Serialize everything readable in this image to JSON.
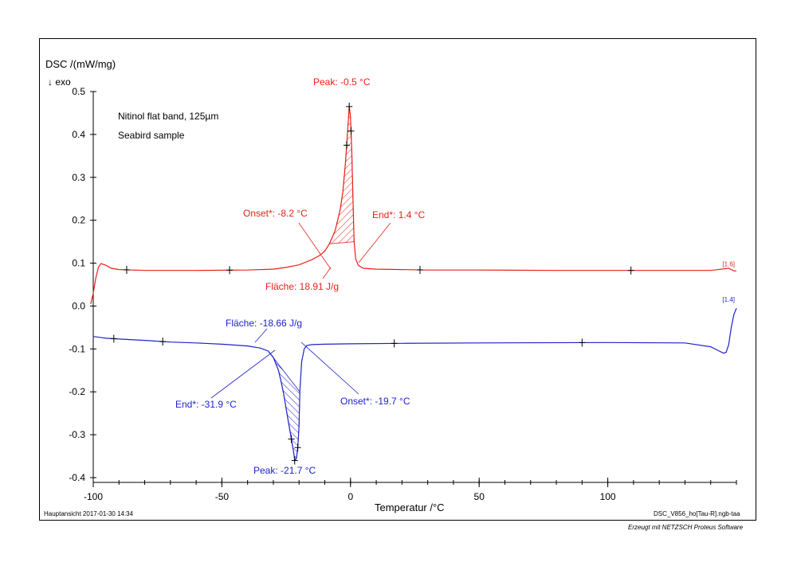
{
  "header": {
    "ylabel": "DSC /(mW/mg)",
    "exo": "↓ exo"
  },
  "footer": {
    "left": "Hauptansicht  2017-01-30 14:34",
    "right": "DSC_V856_ho[Tau-R].ngb-taa",
    "credit": "Erzeugt mit NETZSCH Proteus Software"
  },
  "chart_data": {
    "type": "line",
    "xlabel": "Temperatur /°C",
    "ylabel": "DSC /(mW/mg)",
    "xlim": [
      -100,
      150
    ],
    "ylim": [
      -0.4,
      0.5
    ],
    "x_ticks": [
      -100,
      -50,
      0,
      50,
      100
    ],
    "y_ticks": [
      -0.4,
      -0.3,
      -0.2,
      -0.1,
      0.0,
      0.1,
      0.2,
      0.3,
      0.4,
      0.5
    ],
    "x_tick_labels": [
      "-100",
      "-50",
      "0",
      "50",
      "100"
    ],
    "y_tick_labels": [
      "-0.4",
      "-0.3",
      "-0.2",
      "-0.1",
      "0.0",
      "0.1",
      "0.2",
      "0.3",
      "0.4",
      "0.5"
    ],
    "notes": [
      "Nitinol flat band, 125µm",
      "Seabird sample"
    ],
    "series": [
      {
        "color": "#e8201a",
        "segment_label": "[1.6]",
        "x": [
          -101,
          -100,
          -99,
          -98,
          -97,
          -95,
          -93,
          -90,
          -85,
          -80,
          -60,
          -40,
          -30,
          -25,
          -20,
          -15,
          -12,
          -10,
          -8.2,
          -6,
          -4,
          -3,
          -2,
          -1.5,
          -1,
          -0.5,
          0,
          0.5,
          1,
          1.4,
          2,
          3,
          5,
          10,
          20,
          30,
          50,
          80,
          100,
          120,
          140,
          147,
          149,
          150
        ],
        "y": [
          0.005,
          0.03,
          0.065,
          0.09,
          0.099,
          0.095,
          0.088,
          0.085,
          0.084,
          0.083,
          0.083,
          0.084,
          0.086,
          0.09,
          0.096,
          0.108,
          0.118,
          0.128,
          0.145,
          0.175,
          0.225,
          0.265,
          0.33,
          0.375,
          0.42,
          0.465,
          0.44,
          0.36,
          0.24,
          0.15,
          0.11,
          0.095,
          0.088,
          0.086,
          0.085,
          0.084,
          0.084,
          0.083,
          0.083,
          0.083,
          0.083,
          0.088,
          0.082,
          0.082
        ]
      },
      {
        "color": "#1f22c8",
        "segment_label": "[1.4]",
        "x": [
          -100,
          -95,
          -90,
          -80,
          -70,
          -60,
          -50,
          -40,
          -35,
          -32,
          -30,
          -28,
          -27,
          -26,
          -25,
          -24,
          -23,
          -22,
          -21.7,
          -21,
          -20.5,
          -20,
          -19.7,
          -19,
          -18,
          -17,
          -15,
          -10,
          0,
          20,
          50,
          100,
          130,
          140,
          143,
          145,
          146,
          147,
          148,
          149,
          150
        ],
        "y": [
          -0.071,
          -0.075,
          -0.077,
          -0.08,
          -0.084,
          -0.086,
          -0.089,
          -0.093,
          -0.098,
          -0.105,
          -0.12,
          -0.15,
          -0.175,
          -0.205,
          -0.24,
          -0.275,
          -0.31,
          -0.345,
          -0.36,
          -0.355,
          -0.33,
          -0.28,
          -0.2,
          -0.13,
          -0.1,
          -0.092,
          -0.09,
          -0.089,
          -0.088,
          -0.087,
          -0.086,
          -0.085,
          -0.086,
          -0.095,
          -0.104,
          -0.11,
          -0.108,
          -0.09,
          -0.05,
          -0.02,
          -0.005
        ]
      }
    ],
    "annotations": [
      {
        "text": "Peak: -0.5 °C",
        "color": "#e8201a",
        "x": -0.5,
        "y": 0.465
      },
      {
        "text": "Onset*: -8.2 °C",
        "color": "#e8201a",
        "x": -8.2,
        "y": 0.145
      },
      {
        "text": "End*: 1.4 °C",
        "color": "#e8201a",
        "x": 1.4,
        "y": 0.15
      },
      {
        "text": "Fläche: 18.91 J/g",
        "color": "#e8201a",
        "x": -8,
        "y": 0.11
      },
      {
        "text": "Fläche: -18.66 J/g",
        "color": "#1f22c8",
        "x": -28,
        "y": -0.1
      },
      {
        "text": "End*: -31.9 °C",
        "color": "#1f22c8",
        "x": -31.9,
        "y": -0.105
      },
      {
        "text": "Onset*: -19.7 °C",
        "color": "#1f22c8",
        "x": -19.7,
        "y": -0.2
      },
      {
        "text": "Peak: -21.7 °C",
        "color": "#1f22c8",
        "x": -21.7,
        "y": -0.36
      }
    ],
    "integration_areas": [
      {
        "color": "#e8201a",
        "x_range": [
          -8.2,
          1.4
        ]
      },
      {
        "color": "#1f22c8",
        "x_range": [
          -31.9,
          -19.7
        ]
      }
    ],
    "markers": [
      {
        "color": "#e8201a",
        "x": [
          -87,
          -47,
          27,
          109,
          -1.5,
          -0.5,
          0.2
        ]
      },
      {
        "color": "#1f22c8",
        "x": [
          -92,
          -73,
          17,
          90,
          -23,
          -21.7,
          -20.5
        ]
      }
    ]
  }
}
